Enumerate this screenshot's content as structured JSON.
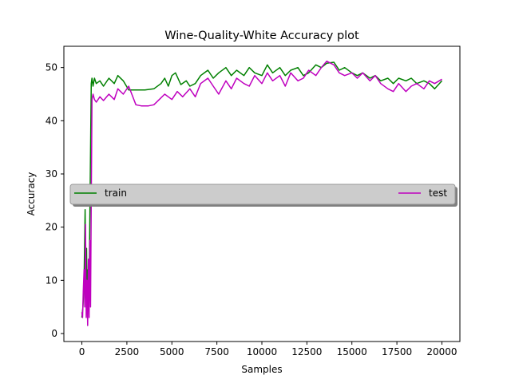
{
  "chart_data": {
    "type": "line",
    "title": "Wine-Quality-White Accuracy plot",
    "xlabel": "Samples",
    "ylabel": "Accuracy",
    "xlim": [
      -1000,
      21000
    ],
    "ylim": [
      -1.5,
      54
    ],
    "xticks": [
      0,
      2500,
      5000,
      7500,
      10000,
      12500,
      15000,
      17500,
      20000
    ],
    "yticks": [
      0,
      10,
      20,
      30,
      40,
      50
    ],
    "legend_placement": "center (horizontal band across plot)",
    "grid": false,
    "series": [
      {
        "name": "train",
        "color": "#008000",
        "x": [
          0,
          60,
          120,
          180,
          220,
          260,
          300,
          340,
          380,
          420,
          470,
          520,
          560,
          620,
          700,
          800,
          1000,
          1200,
          1500,
          1800,
          2000,
          2300,
          2600,
          3000,
          3500,
          4000,
          4400,
          4600,
          4800,
          5000,
          5200,
          5500,
          5800,
          6000,
          6300,
          6600,
          7000,
          7300,
          7600,
          8000,
          8300,
          8600,
          9000,
          9300,
          9600,
          10000,
          10300,
          10600,
          11000,
          11300,
          11600,
          12000,
          12300,
          12600,
          13000,
          13300,
          13600,
          14000,
          14300,
          14600,
          15000,
          15300,
          15600,
          16000,
          16300,
          16600,
          17000,
          17300,
          17600,
          18000,
          18300,
          18600,
          19000,
          19300,
          19600,
          20000
        ],
        "values": [
          3,
          5,
          10,
          23.3,
          8,
          16,
          4,
          12,
          6,
          14,
          30,
          47,
          48,
          46.5,
          48,
          47,
          47.5,
          46.5,
          48,
          47,
          48.5,
          47.5,
          45.8,
          45.8,
          45.8,
          46,
          47,
          48,
          46.5,
          48.5,
          49,
          46.8,
          47.5,
          46.5,
          47,
          48.5,
          49.5,
          48,
          49,
          50,
          48.5,
          49.5,
          48.5,
          50,
          49,
          48.5,
          50.5,
          49,
          50,
          48.5,
          49.5,
          50,
          48.5,
          49,
          50.5,
          50,
          50.8,
          51,
          49.5,
          50,
          49,
          48.5,
          49,
          48,
          48.5,
          47.5,
          48,
          47,
          48,
          47.5,
          48,
          47,
          47.5,
          47,
          46,
          47.5
        ]
      },
      {
        "name": "test",
        "color": "#bf00bf",
        "x": [
          0,
          40,
          80,
          120,
          160,
          200,
          240,
          280,
          320,
          360,
          400,
          440,
          480,
          520,
          560,
          620,
          700,
          800,
          1000,
          1200,
          1500,
          1800,
          2000,
          2300,
          2600,
          3000,
          3300,
          3700,
          4000,
          4300,
          4600,
          5000,
          5300,
          5600,
          6000,
          6300,
          6600,
          7000,
          7300,
          7600,
          8000,
          8300,
          8600,
          9000,
          9300,
          9600,
          10000,
          10300,
          10600,
          11000,
          11300,
          11600,
          12000,
          12300,
          12600,
          13000,
          13300,
          13600,
          14000,
          14300,
          14600,
          15000,
          15300,
          15600,
          16000,
          16300,
          16600,
          17000,
          17300,
          17600,
          18000,
          18300,
          18600,
          19000,
          19300,
          19600,
          20000
        ],
        "values": [
          4,
          3,
          8,
          12,
          5,
          20.5,
          3,
          10,
          1.5,
          14,
          3,
          17.5,
          5,
          25,
          44,
          45,
          44,
          43.5,
          44.5,
          43.8,
          45,
          44,
          46,
          45,
          46.5,
          43,
          42.8,
          42.8,
          43,
          44,
          45,
          44,
          45.5,
          44.5,
          46,
          44.5,
          47,
          48,
          46.5,
          45,
          47.5,
          46,
          48,
          47,
          46.5,
          48.5,
          47,
          49,
          47.5,
          48.5,
          46.5,
          49,
          47.5,
          48,
          49.5,
          48.5,
          50,
          51.2,
          50.5,
          49,
          48.5,
          49,
          48,
          49,
          47.5,
          48.5,
          47,
          46,
          45.5,
          47,
          45.5,
          46.5,
          47,
          46,
          47.5,
          47,
          47.8
        ]
      }
    ]
  }
}
